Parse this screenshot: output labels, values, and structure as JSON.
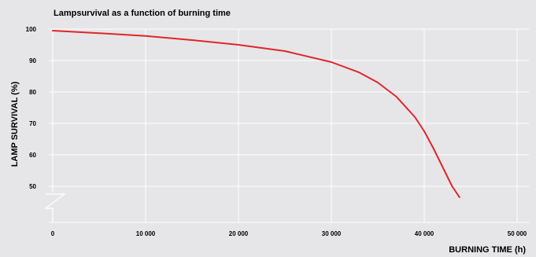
{
  "chart_data": {
    "type": "line",
    "title": "Lampsurvival as a function of burning time",
    "xlabel": "BURNING TIME (h)",
    "ylabel": "LAMP SURVIVAL (%)",
    "xlim": [
      0,
      50000
    ],
    "ylim": [
      40,
      100
    ],
    "x_ticks": [
      {
        "value": 0,
        "label": "0"
      },
      {
        "value": 10000,
        "label": "10 000"
      },
      {
        "value": 20000,
        "label": "20 000"
      },
      {
        "value": 30000,
        "label": "30 000"
      },
      {
        "value": 40000,
        "label": "40 000"
      },
      {
        "value": 50000,
        "label": "50 000"
      }
    ],
    "y_ticks": [
      {
        "value": 100,
        "label": "100"
      },
      {
        "value": 90,
        "label": "90"
      },
      {
        "value": 80,
        "label": "80"
      },
      {
        "value": 70,
        "label": "70"
      },
      {
        "value": 60,
        "label": "60"
      },
      {
        "value": 50,
        "label": "50"
      }
    ],
    "y_axis_break": true,
    "grid": true,
    "series": [
      {
        "color": "#e0262a",
        "x": [
          0,
          5000,
          10000,
          15000,
          20000,
          25000,
          30000,
          33000,
          35000,
          37000,
          39000,
          40000,
          41000,
          42000,
          43000,
          43800
        ],
        "y": [
          99.5,
          98.7,
          97.8,
          96.5,
          95.0,
          93.0,
          89.5,
          86.2,
          83.0,
          78.5,
          72.0,
          67.5,
          62.0,
          56.0,
          50.0,
          46.5
        ]
      }
    ]
  }
}
